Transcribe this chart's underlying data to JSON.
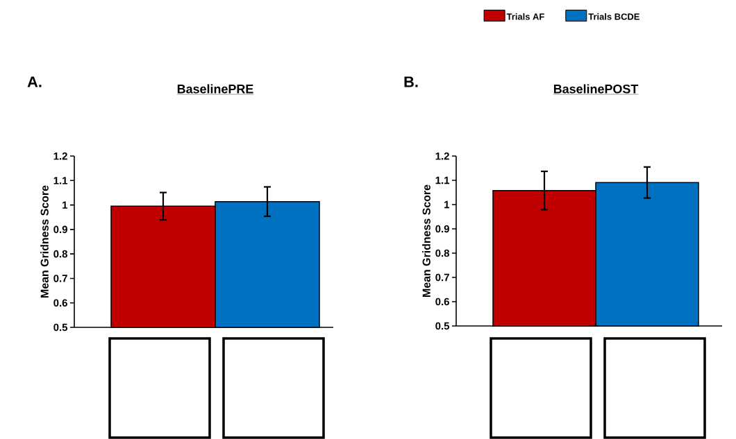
{
  "chart_data": [
    {
      "type": "bar",
      "title": "BaselinePRE",
      "ylabel": "Mean Gridness Score",
      "annotations": [
        "A."
      ],
      "categories": [
        null
      ],
      "series": [
        {
          "color": "#c00000",
          "values": [
            0.995
          ],
          "errors": [
            0.056
          ]
        },
        {
          "color": "#0070c0",
          "values": [
            1.014
          ],
          "errors": [
            0.06
          ]
        }
      ],
      "ylim": [
        0.5,
        1.2
      ],
      "yticks": [
        0.5,
        0.6,
        0.7,
        0.8,
        0.9,
        1,
        1.1,
        1.2
      ]
    },
    {
      "type": "bar",
      "title": "BaselinePOST",
      "ylabel": "Mean Gridness Score",
      "annotations": [
        "B."
      ],
      "categories": [
        null
      ],
      "legend": "top",
      "series": [
        {
          "name": "Trials AF",
          "color": "#c00000",
          "values": [
            1.058
          ],
          "errors": [
            0.079
          ]
        },
        {
          "name": "Trials BCDE",
          "color": "#0070c0",
          "values": [
            1.091
          ],
          "errors": [
            0.064
          ]
        }
      ],
      "ylim": [
        0.5,
        1.2
      ],
      "yticks": [
        0.5,
        0.6,
        0.7,
        0.8,
        0.9,
        1,
        1.1,
        1.2
      ]
    }
  ]
}
